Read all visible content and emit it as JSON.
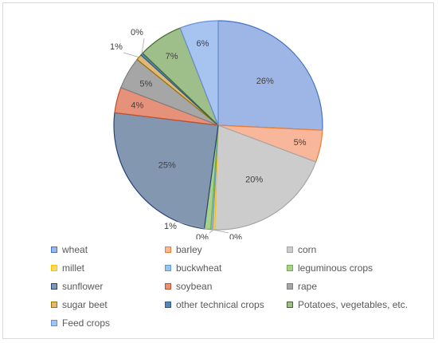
{
  "chart_data": {
    "type": "pie",
    "title": "",
    "legend_position": "bottom",
    "start_angle_deg": 0,
    "direction": "clockwise",
    "slices": [
      {
        "label": "wheat",
        "value": 26,
        "display": "26%",
        "color": "#9eb6e6",
        "stroke": "#4472c4"
      },
      {
        "label": "barley",
        "value": 5,
        "display": "5%",
        "color": "#f8b79a",
        "stroke": "#ed7d31"
      },
      {
        "label": "corn",
        "value": 20,
        "display": "20%",
        "color": "#cccccc",
        "stroke": "#a5a5a5"
      },
      {
        "label": "millet",
        "value": 0.3,
        "display": "0%",
        "color": "#ffd966",
        "stroke": "#ffc000"
      },
      {
        "label": "buckwheat",
        "value": 0.3,
        "display": "0%",
        "color": "#9dc3e6",
        "stroke": "#5b9bd5"
      },
      {
        "label": "leguminous crops",
        "value": 1,
        "display": "1%",
        "color": "#a9d18e",
        "stroke": "#70ad47"
      },
      {
        "label": "sunflower",
        "value": 25,
        "display": "25%",
        "color": "#8497b0",
        "stroke": "#264478"
      },
      {
        "label": "soybean",
        "value": 4,
        "display": "4%",
        "color": "#e6917a",
        "stroke": "#c0502a"
      },
      {
        "label": "rape",
        "value": 5,
        "display": "5%",
        "color": "#a6a6a6",
        "stroke": "#7f7f7f"
      },
      {
        "label": "sugar beet",
        "value": 0.9,
        "display": "1%",
        "color": "#dfb87a",
        "stroke": "#997300"
      },
      {
        "label": "other technical crops",
        "value": 0.4,
        "display": "0%",
        "color": "#5b85b0",
        "stroke": "#255e91"
      },
      {
        "label": "Potatoes, vegetables, etc.",
        "value": 7,
        "display": "7%",
        "color": "#9fbf8a",
        "stroke": "#43682b"
      },
      {
        "label": "Feed crops",
        "value": 6,
        "display": "6%",
        "color": "#a7c3ef",
        "stroke": "#698ed0"
      }
    ]
  }
}
